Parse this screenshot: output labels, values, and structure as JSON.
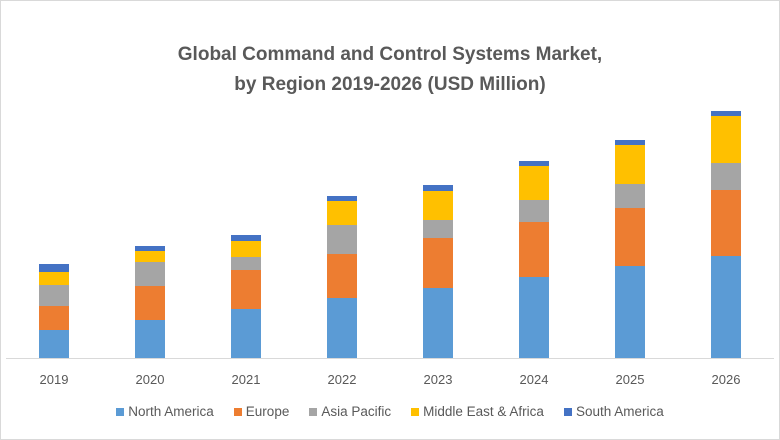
{
  "chart_data": {
    "type": "bar",
    "stacked": true,
    "title": "Global Command and Control Systems Market,",
    "subtitle": "by Region 2019-2026 (USD Million)",
    "xlabel": "",
    "ylabel": "",
    "value_note": "No y-axis scale shown; values are estimated relative magnitudes",
    "grid": false,
    "legend_position": "bottom",
    "categories": [
      "2019",
      "2020",
      "2021",
      "2022",
      "2023",
      "2024",
      "2025",
      "2026"
    ],
    "ylim": [
      0,
      250
    ],
    "series": [
      {
        "name": "North America",
        "color": "#5b9bd5",
        "values": [
          28,
          38,
          49,
          60,
          70,
          81,
          92,
          102
        ]
      },
      {
        "name": "Europe",
        "color": "#ed7d31",
        "values": [
          24,
          34,
          39,
          44,
          50,
          55,
          58,
          66
        ]
      },
      {
        "name": "Asia Pacific",
        "color": "#a5a5a5",
        "values": [
          21,
          24,
          13,
          29,
          18,
          22,
          24,
          27
        ]
      },
      {
        "name": "Middle East & Africa",
        "color": "#ffc000",
        "values": [
          13,
          11,
          16,
          24,
          29,
          34,
          39,
          47
        ]
      },
      {
        "name": "South America",
        "color": "#4472c4",
        "values": [
          8,
          5,
          6,
          5,
          6,
          5,
          5,
          5
        ]
      }
    ]
  }
}
